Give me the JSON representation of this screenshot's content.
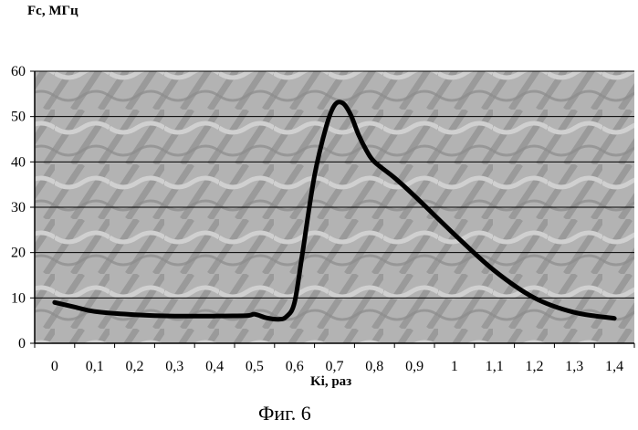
{
  "chart_data": {
    "type": "line",
    "title": "",
    "ylabel": "Fc, МГц",
    "xlabel": "Ki, раз",
    "caption": "Фиг. 6",
    "x_tick_labels": [
      "0",
      "0,1",
      "0,2",
      "0,3",
      "0,4",
      "0,5",
      "0,6",
      "0,7",
      "0,8",
      "0,9",
      "1",
      "1,1",
      "1,2",
      "1,3",
      "1,4"
    ],
    "y_tick_labels": [
      "0",
      "10",
      "20",
      "30",
      "40",
      "50",
      "60"
    ],
    "ylim": [
      0,
      60
    ],
    "xlim": [
      0,
      1.4
    ],
    "grid": "horizontal",
    "series": [
      {
        "x": [
          0,
          0.05,
          0.1,
          0.2,
          0.3,
          0.4,
          0.48,
          0.5,
          0.53,
          0.56,
          0.58,
          0.6,
          0.62,
          0.65,
          0.68,
          0.7,
          0.72,
          0.74,
          0.76,
          0.78,
          0.8,
          0.85,
          0.9,
          1.0,
          1.1,
          1.2,
          1.3,
          1.4
        ],
        "y": [
          9,
          8,
          7,
          6.3,
          6,
          6,
          6.1,
          6.4,
          5.6,
          5.3,
          5.9,
          9,
          20,
          37,
          48,
          52.5,
          53,
          50.5,
          46,
          42.5,
          40,
          36.5,
          32.5,
          24,
          16,
          10,
          6.8,
          5.5
        ]
      }
    ]
  }
}
